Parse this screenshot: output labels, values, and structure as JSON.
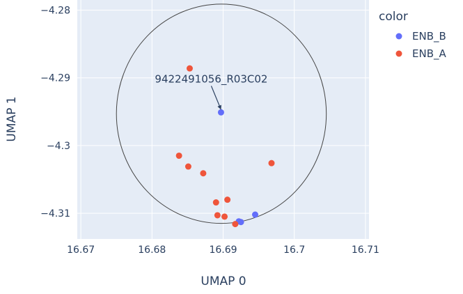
{
  "chart_data": {
    "type": "scatter",
    "xlabel": "UMAP 0",
    "ylabel": "UMAP 1",
    "xlim": [
      16.6695,
      16.7105
    ],
    "ylim": [
      -4.3138,
      -4.2785
    ],
    "xticks": [
      {
        "value": 16.67,
        "label": "16.67"
      },
      {
        "value": 16.68,
        "label": "16.68"
      },
      {
        "value": 16.69,
        "label": "16.69"
      },
      {
        "value": 16.7,
        "label": "16.7"
      },
      {
        "value": 16.71,
        "label": "16.71"
      }
    ],
    "yticks": [
      {
        "value": -4.28,
        "label": "−4.28"
      },
      {
        "value": -4.29,
        "label": "−4.29"
      },
      {
        "value": -4.3,
        "label": "−4.3"
      },
      {
        "value": -4.31,
        "label": "−4.31"
      }
    ],
    "grid": true,
    "legend": {
      "title": "color",
      "position": "right",
      "entries": [
        {
          "name": "ENB_B",
          "color": "#636efa"
        },
        {
          "name": "ENB_A",
          "color": "#ef553b"
        }
      ]
    },
    "series": [
      {
        "name": "ENB_B",
        "color": "#636efa",
        "points": [
          {
            "x": 16.6897,
            "y": -4.2951
          },
          {
            "x": 16.6945,
            "y": -4.3102
          },
          {
            "x": 16.6925,
            "y": -4.3113
          },
          {
            "x": 16.6922,
            "y": -4.3112
          }
        ]
      },
      {
        "name": "ENB_A",
        "color": "#ef553b",
        "points": [
          {
            "x": 16.6853,
            "y": -4.2886
          },
          {
            "x": 16.6838,
            "y": -4.3015
          },
          {
            "x": 16.6851,
            "y": -4.3031
          },
          {
            "x": 16.6872,
            "y": -4.3041
          },
          {
            "x": 16.6968,
            "y": -4.3026
          },
          {
            "x": 16.6906,
            "y": -4.308
          },
          {
            "x": 16.689,
            "y": -4.3084
          },
          {
            "x": 16.6892,
            "y": -4.3103
          },
          {
            "x": 16.6902,
            "y": -4.3105
          },
          {
            "x": 16.6917,
            "y": -4.3116
          }
        ]
      }
    ],
    "annotation": {
      "text": "9422491056_R03C02",
      "x": 16.6897,
      "y": -4.2951
    },
    "circle": {
      "x0": 16.675,
      "x1": 16.7045,
      "y0": -4.3115,
      "y1": -4.2791
    }
  }
}
